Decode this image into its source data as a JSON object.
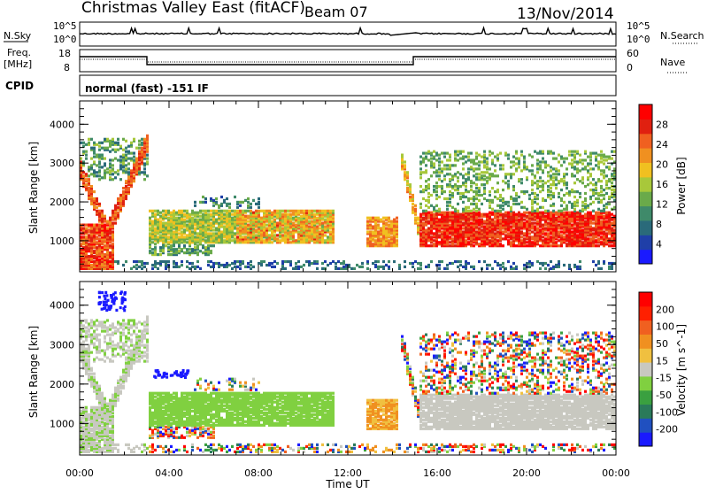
{
  "header": {
    "station": "Christmas Valley East (fitACF)",
    "beam": "Beam 07",
    "date": "13/Nov/2014"
  },
  "top_panels": {
    "nsky_label": "N.Sky",
    "nsearch_label": "N.Search",
    "nsky_ticks": [
      "10^5",
      "10^0"
    ],
    "nsearch_ticks": [
      "10^5",
      "10^0"
    ],
    "freq_label_1": "Freq.",
    "freq_label_2": "[MHz]",
    "freq_ticks": [
      "18",
      "8"
    ],
    "nave_label": "Nave",
    "nave_ticks": [
      "60",
      "0"
    ],
    "cpid_label": "CPID",
    "cpid_text": "normal (fast) -151 IF"
  },
  "colors": {
    "power": [
      "#1a1aff",
      "#1f3fa8",
      "#2a6a7a",
      "#3f8a6a",
      "#6aaa4a",
      "#a8c83a",
      "#f0c020",
      "#f09020",
      "#f06020",
      "#e02010",
      "#ff0000"
    ],
    "velocity": [
      "#1a1aff",
      "#2050c0",
      "#2a7a5a",
      "#3aa040",
      "#80d040",
      "#c8c8c0",
      "#f0c040",
      "#f09020",
      "#f06020",
      "#ff2000",
      "#ff0000"
    ]
  },
  "chart_data": [
    {
      "type": "heatmap",
      "title": "Power",
      "ylabel": "Slant Range [km]",
      "xlabel": "Time UT",
      "x_ticks": [
        "00:00",
        "04:00",
        "08:00",
        "12:00",
        "16:00",
        "20:00",
        "00:00"
      ],
      "y_ticks": [
        1000,
        2000,
        3000,
        4000
      ],
      "ylim": [
        200,
        4600
      ],
      "colorbar_label": "Power [dB]",
      "colorbar_ticks": [
        4,
        8,
        12,
        16,
        20,
        24,
        28
      ]
    },
    {
      "type": "heatmap",
      "title": "Velocity",
      "ylabel": "Slant Range [km]",
      "xlabel": "Time UT",
      "x_ticks": [
        "00:00",
        "04:00",
        "08:00",
        "12:00",
        "16:00",
        "20:00",
        "00:00"
      ],
      "y_ticks": [
        1000,
        2000,
        3000,
        4000
      ],
      "ylim": [
        200,
        4600
      ],
      "colorbar_label": "Velocity [m s^-1]",
      "colorbar_ticks": [
        200,
        100,
        50,
        15,
        -15,
        -50,
        -100,
        -200
      ]
    }
  ],
  "time_axis_label": "Time UT"
}
